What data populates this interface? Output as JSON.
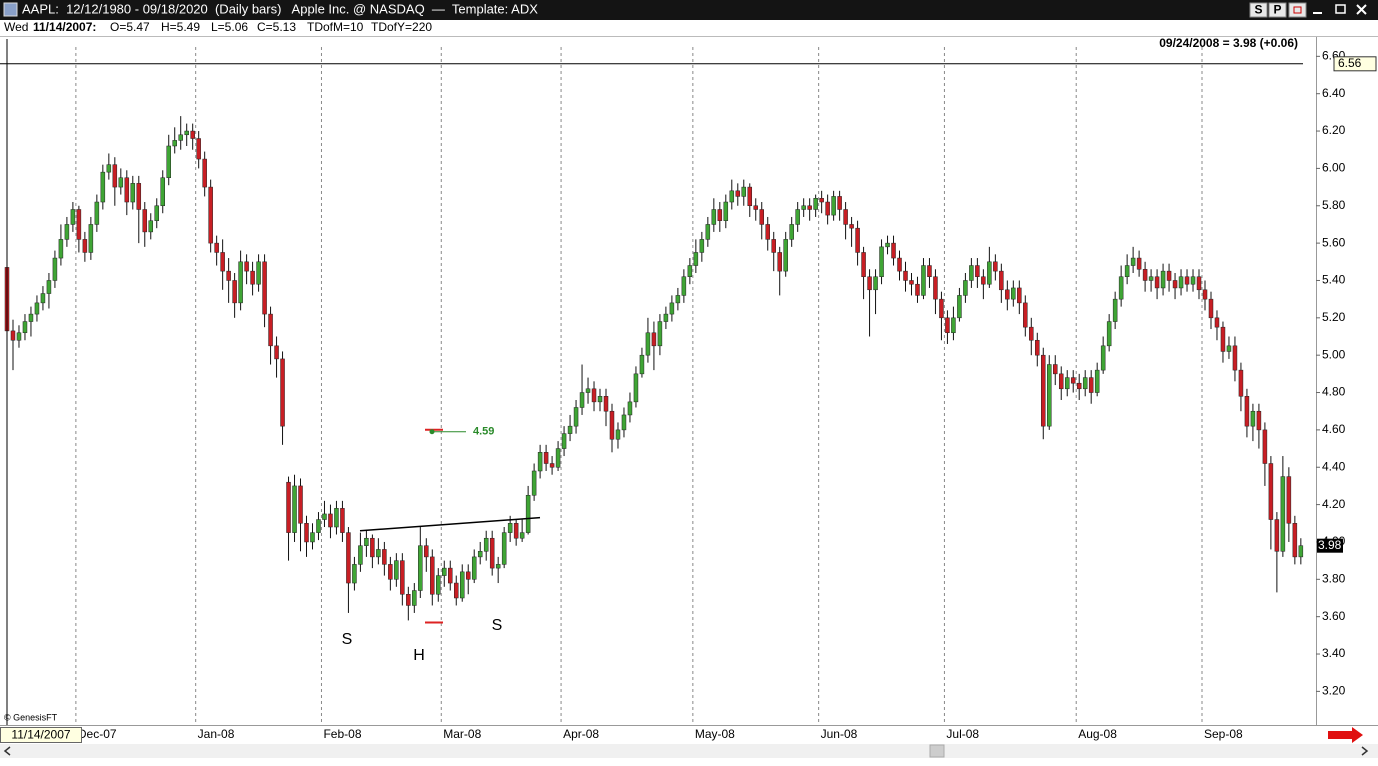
{
  "window": {
    "title": "AAPL:  12/12/1980 - 09/18/2020  (Daily bars)   Apple Inc. @ NASDAQ  —  Template: ADX",
    "buttons": [
      "S",
      "P"
    ]
  },
  "info_bar": {
    "day": "Wed",
    "date": "11/14/2007:",
    "items": [
      "O=5.47",
      "H=5.49",
      "L=5.06",
      "C=5.13",
      "TDofM=10",
      "TDofY=220"
    ]
  },
  "footer": {
    "credit": "© GenesisFT",
    "cursor_date": "11/14/2007"
  },
  "chart_data": {
    "type": "candlestick",
    "status_text": "09/24/2008 = 3.98 (+0.06)",
    "up_color": "#3fa535",
    "down_color": "#c81e24",
    "grid": true,
    "ylim": [
      3.02,
      6.65
    ],
    "yticks": [
      {
        "value": 3.2,
        "label": "3.20"
      },
      {
        "value": 3.4,
        "label": "3.40"
      },
      {
        "value": 3.6,
        "label": "3.60"
      },
      {
        "value": 3.8,
        "label": "3.80"
      },
      {
        "value": 4,
        "label": "4.00"
      },
      {
        "value": 4.2,
        "label": "4.20"
      },
      {
        "value": 4.4,
        "label": "4.40"
      },
      {
        "value": 4.6,
        "label": "4.60"
      },
      {
        "value": 4.8,
        "label": "4.80"
      },
      {
        "value": 5,
        "label": "5.00"
      },
      {
        "value": 5.2,
        "label": "5.20"
      },
      {
        "value": 5.4,
        "label": "5.40"
      },
      {
        "value": 5.6,
        "label": "5.60"
      },
      {
        "value": 5.8,
        "label": "5.80"
      },
      {
        "value": 6,
        "label": "6.00"
      },
      {
        "value": 6.2,
        "label": "6.20"
      },
      {
        "value": 6.4,
        "label": "6.40"
      },
      {
        "value": 6.6,
        "label": "6.60"
      }
    ],
    "crosshair": 6.56,
    "last_price": 3.98,
    "target": 4.59,
    "neckline": [
      4.06,
      4.13
    ],
    "pattern_labels": [
      "S",
      "H",
      "S"
    ],
    "categories": [
      null,
      null,
      null,
      null,
      null,
      null,
      null,
      null,
      null,
      null,
      null,
      null,
      "Dec-07",
      null,
      null,
      null,
      null,
      null,
      null,
      null,
      null,
      null,
      null,
      null,
      null,
      null,
      null,
      null,
      null,
      null,
      null,
      null,
      "Jan-08",
      null,
      null,
      null,
      null,
      null,
      null,
      null,
      null,
      null,
      null,
      null,
      null,
      null,
      null,
      null,
      null,
      null,
      null,
      null,
      null,
      "Feb-08",
      null,
      null,
      null,
      null,
      null,
      null,
      null,
      null,
      null,
      null,
      null,
      null,
      null,
      null,
      null,
      null,
      null,
      null,
      null,
      "Mar-08",
      null,
      null,
      null,
      null,
      null,
      null,
      null,
      null,
      null,
      null,
      null,
      null,
      null,
      null,
      null,
      null,
      null,
      null,
      null,
      "Apr-08",
      null,
      null,
      null,
      null,
      null,
      null,
      null,
      null,
      null,
      null,
      null,
      null,
      null,
      null,
      null,
      null,
      null,
      null,
      null,
      null,
      null,
      "May-08",
      null,
      null,
      null,
      null,
      null,
      null,
      null,
      null,
      null,
      null,
      null,
      null,
      null,
      null,
      null,
      null,
      null,
      null,
      null,
      null,
      "Jun-08",
      null,
      null,
      null,
      null,
      null,
      null,
      null,
      null,
      null,
      null,
      null,
      null,
      null,
      null,
      null,
      null,
      null,
      null,
      null,
      null,
      "Jul-08",
      null,
      null,
      null,
      null,
      null,
      null,
      null,
      null,
      null,
      null,
      null,
      null,
      null,
      null,
      null,
      null,
      null,
      null,
      null,
      null,
      null,
      "Aug-08",
      null,
      null,
      null,
      null,
      null,
      null,
      null,
      null,
      null,
      null,
      null,
      null,
      null,
      null,
      null,
      null,
      null,
      null,
      null,
      null,
      "Sep-08",
      null,
      null,
      null,
      null,
      null,
      null,
      null,
      null,
      null,
      null,
      null,
      null,
      null,
      null,
      null,
      null
    ],
    "open": [
      5.47,
      5.13,
      5.08,
      5.12,
      5.18,
      5.22,
      5.28,
      5.33,
      5.4,
      5.52,
      5.62,
      5.7,
      5.78,
      5.62,
      5.55,
      5.7,
      5.82,
      5.98,
      6.02,
      5.9,
      5.95,
      5.82,
      5.92,
      5.78,
      5.66,
      5.72,
      5.8,
      5.95,
      6.12,
      6.15,
      6.18,
      6.2,
      6.16,
      6.05,
      5.9,
      5.6,
      5.55,
      5.45,
      5.4,
      5.28,
      5.5,
      5.45,
      5.38,
      5.5,
      5.22,
      5.05,
      4.98,
      4.32,
      4.05,
      4.3,
      4.1,
      4.0,
      4.05,
      4.12,
      4.15,
      4.08,
      4.18,
      4.05,
      3.78,
      3.88,
      3.98,
      4.02,
      3.92,
      3.96,
      3.88,
      3.8,
      3.9,
      3.72,
      3.66,
      3.74,
      3.98,
      3.92,
      3.72,
      3.82,
      3.86,
      3.78,
      3.7,
      3.84,
      3.8,
      3.92,
      3.95,
      4.02,
      3.86,
      3.88,
      4.05,
      4.1,
      4.02,
      4.05,
      4.25,
      4.38,
      4.48,
      4.42,
      4.4,
      4.5,
      4.58,
      4.62,
      4.72,
      4.8,
      4.82,
      4.75,
      4.78,
      4.7,
      4.55,
      4.6,
      4.68,
      4.75,
      4.9,
      5.0,
      5.12,
      5.05,
      5.18,
      5.22,
      5.28,
      5.32,
      5.42,
      5.48,
      5.55,
      5.62,
      5.7,
      5.78,
      5.72,
      5.82,
      5.88,
      5.85,
      5.9,
      5.8,
      5.78,
      5.7,
      5.62,
      5.55,
      5.45,
      5.62,
      5.7,
      5.78,
      5.8,
      5.78,
      5.84,
      5.82,
      5.75,
      5.85,
      5.78,
      5.7,
      5.68,
      5.55,
      5.42,
      5.35,
      5.42,
      5.58,
      5.6,
      5.52,
      5.45,
      5.4,
      5.38,
      5.32,
      5.48,
      5.42,
      5.3,
      5.2,
      5.12,
      5.2,
      5.32,
      5.4,
      5.48,
      5.42,
      5.38,
      5.5,
      5.45,
      5.35,
      5.3,
      5.36,
      5.28,
      5.15,
      5.08,
      5.0,
      4.62,
      4.95,
      4.9,
      4.82,
      4.88,
      4.85,
      4.82,
      4.88,
      4.8,
      4.92,
      5.05,
      5.18,
      5.3,
      5.42,
      5.48,
      5.52,
      5.46,
      5.4,
      5.42,
      5.36,
      5.45,
      5.4,
      5.36,
      5.42,
      5.38,
      5.42,
      5.35,
      5.3,
      5.2,
      5.15,
      5.02,
      5.05,
      4.92,
      4.78,
      4.62,
      4.7,
      4.6,
      4.42,
      4.12,
      3.95,
      4.35,
      4.1,
      3.92
    ],
    "high": [
      5.49,
      5.19,
      5.16,
      5.22,
      5.26,
      5.32,
      5.37,
      5.44,
      5.56,
      5.7,
      5.74,
      5.82,
      5.8,
      5.66,
      5.74,
      5.86,
      6.02,
      6.08,
      6.06,
      6.0,
      5.99,
      5.96,
      5.96,
      5.82,
      5.76,
      5.84,
      5.99,
      6.18,
      6.22,
      6.28,
      6.24,
      6.24,
      6.2,
      6.09,
      5.94,
      5.64,
      5.62,
      5.52,
      5.44,
      5.56,
      5.54,
      5.5,
      5.54,
      5.54,
      5.26,
      5.1,
      5.02,
      4.35,
      4.36,
      4.34,
      4.14,
      4.1,
      4.16,
      4.22,
      4.2,
      4.22,
      4.22,
      4.08,
      3.92,
      4.05,
      4.06,
      4.04,
      4.02,
      4.0,
      3.92,
      3.94,
      3.94,
      3.76,
      3.78,
      4.08,
      4.02,
      3.96,
      3.86,
      3.9,
      3.9,
      3.82,
      3.88,
      3.88,
      3.96,
      4.0,
      4.06,
      4.06,
      3.92,
      4.08,
      4.14,
      4.12,
      4.12,
      4.3,
      4.42,
      4.52,
      4.52,
      4.46,
      4.54,
      4.62,
      4.68,
      4.76,
      4.95,
      4.88,
      4.86,
      4.82,
      4.82,
      4.74,
      4.64,
      4.72,
      4.8,
      4.94,
      5.04,
      5.2,
      5.18,
      5.22,
      5.26,
      5.32,
      5.36,
      5.46,
      5.52,
      5.62,
      5.66,
      5.74,
      5.84,
      5.82,
      5.86,
      5.94,
      5.92,
      5.94,
      5.92,
      5.84,
      5.82,
      5.74,
      5.66,
      5.58,
      5.66,
      5.74,
      5.82,
      5.84,
      5.84,
      5.86,
      5.88,
      5.86,
      5.88,
      5.88,
      5.82,
      5.74,
      5.72,
      5.58,
      5.46,
      5.46,
      5.62,
      5.64,
      5.64,
      5.56,
      5.5,
      5.44,
      5.42,
      5.52,
      5.52,
      5.46,
      5.34,
      5.24,
      5.26,
      5.36,
      5.44,
      5.52,
      5.52,
      5.46,
      5.58,
      5.54,
      5.49,
      5.4,
      5.4,
      5.4,
      5.32,
      5.2,
      5.12,
      5.04,
      5.0,
      5.0,
      4.94,
      4.92,
      4.92,
      4.9,
      4.92,
      4.92,
      4.96,
      5.1,
      5.22,
      5.34,
      5.48,
      5.54,
      5.58,
      5.56,
      5.5,
      5.46,
      5.46,
      5.49,
      5.49,
      5.44,
      5.46,
      5.46,
      5.46,
      5.46,
      5.4,
      5.34,
      5.24,
      5.18,
      5.1,
      5.1,
      4.96,
      4.82,
      4.74,
      4.74,
      4.64,
      4.46,
      4.16,
      4.46,
      4.4,
      4.14,
      4.02
    ],
    "low": [
      5.06,
      4.92,
      5.04,
      5.08,
      5.1,
      5.18,
      5.24,
      5.25,
      5.36,
      5.48,
      5.58,
      5.66,
      5.55,
      5.5,
      5.51,
      5.66,
      5.78,
      5.94,
      5.8,
      5.86,
      5.75,
      5.78,
      5.6,
      5.58,
      5.62,
      5.68,
      5.76,
      5.91,
      6.08,
      6.1,
      6.12,
      6.1,
      6.0,
      5.85,
      5.55,
      5.48,
      5.35,
      5.28,
      5.2,
      5.24,
      5.38,
      5.32,
      5.34,
      5.15,
      4.95,
      4.88,
      4.52,
      3.9,
      4.0,
      3.95,
      3.92,
      3.96,
      4.01,
      4.08,
      4.02,
      4.04,
      4.0,
      3.62,
      3.74,
      3.84,
      3.92,
      3.86,
      3.88,
      3.82,
      3.74,
      3.76,
      3.66,
      3.58,
      3.62,
      3.7,
      3.84,
      3.66,
      3.68,
      3.76,
      3.74,
      3.66,
      3.68,
      3.72,
      3.78,
      3.88,
      3.9,
      3.82,
      3.78,
      3.86,
      4.0,
      3.98,
      4.0,
      4.04,
      4.22,
      4.34,
      4.38,
      4.36,
      4.38,
      4.46,
      4.54,
      4.58,
      4.68,
      4.74,
      4.7,
      4.7,
      4.62,
      4.48,
      4.5,
      4.56,
      4.64,
      4.72,
      4.88,
      4.96,
      4.92,
      5.0,
      5.14,
      5.18,
      5.24,
      5.28,
      5.38,
      5.44,
      5.5,
      5.58,
      5.66,
      5.66,
      5.68,
      5.78,
      5.8,
      5.8,
      5.74,
      5.72,
      5.62,
      5.56,
      5.45,
      5.32,
      5.42,
      5.58,
      5.66,
      5.74,
      5.72,
      5.74,
      5.76,
      5.7,
      5.72,
      5.72,
      5.62,
      5.58,
      5.48,
      5.3,
      5.1,
      5.22,
      5.38,
      5.54,
      5.48,
      5.4,
      5.34,
      5.32,
      5.28,
      5.3,
      5.36,
      5.22,
      5.08,
      5.06,
      5.08,
      5.18,
      5.28,
      5.36,
      5.36,
      5.3,
      5.36,
      5.4,
      5.28,
      5.24,
      5.26,
      5.22,
      5.1,
      5.0,
      4.94,
      4.55,
      4.6,
      4.84,
      4.76,
      4.78,
      4.8,
      4.76,
      4.78,
      4.74,
      4.78,
      4.9,
      5.02,
      5.14,
      5.26,
      5.38,
      5.44,
      5.42,
      5.34,
      5.34,
      5.3,
      5.32,
      5.34,
      5.3,
      5.32,
      5.34,
      5.34,
      5.3,
      5.24,
      5.14,
      5.08,
      4.96,
      4.98,
      4.86,
      4.7,
      4.56,
      4.54,
      4.5,
      4.3,
      3.96,
      3.73,
      3.92,
      4.0,
      3.88,
      3.88
    ],
    "close": [
      5.13,
      5.08,
      5.12,
      5.18,
      5.22,
      5.28,
      5.33,
      5.4,
      5.52,
      5.62,
      5.7,
      5.78,
      5.62,
      5.55,
      5.7,
      5.82,
      5.98,
      6.02,
      5.9,
      5.95,
      5.82,
      5.92,
      5.78,
      5.66,
      5.72,
      5.8,
      5.95,
      6.12,
      6.15,
      6.18,
      6.2,
      6.16,
      6.05,
      5.9,
      5.6,
      5.55,
      5.45,
      5.4,
      5.28,
      5.5,
      5.45,
      5.38,
      5.5,
      5.22,
      5.05,
      4.98,
      4.62,
      4.05,
      4.3,
      4.1,
      4.0,
      4.05,
      4.12,
      4.15,
      4.08,
      4.18,
      4.05,
      3.78,
      3.88,
      3.98,
      4.02,
      3.92,
      3.96,
      3.88,
      3.8,
      3.9,
      3.72,
      3.66,
      3.74,
      3.98,
      3.92,
      3.72,
      3.82,
      3.86,
      3.78,
      3.7,
      3.84,
      3.8,
      3.92,
      3.95,
      4.02,
      3.86,
      3.88,
      4.05,
      4.1,
      4.02,
      4.05,
      4.25,
      4.38,
      4.48,
      4.42,
      4.4,
      4.5,
      4.58,
      4.62,
      4.72,
      4.8,
      4.82,
      4.75,
      4.78,
      4.7,
      4.55,
      4.6,
      4.68,
      4.75,
      4.9,
      5.0,
      5.12,
      5.05,
      5.18,
      5.22,
      5.28,
      5.32,
      5.42,
      5.48,
      5.55,
      5.62,
      5.7,
      5.78,
      5.72,
      5.82,
      5.88,
      5.85,
      5.9,
      5.8,
      5.78,
      5.7,
      5.62,
      5.55,
      5.45,
      5.62,
      5.7,
      5.78,
      5.8,
      5.78,
      5.84,
      5.82,
      5.75,
      5.85,
      5.78,
      5.7,
      5.68,
      5.55,
      5.42,
      5.35,
      5.42,
      5.58,
      5.6,
      5.52,
      5.45,
      5.4,
      5.38,
      5.32,
      5.48,
      5.42,
      5.3,
      5.2,
      5.12,
      5.2,
      5.32,
      5.4,
      5.48,
      5.42,
      5.38,
      5.5,
      5.45,
      5.35,
      5.3,
      5.36,
      5.28,
      5.15,
      5.08,
      5.0,
      4.62,
      4.95,
      4.9,
      4.82,
      4.88,
      4.85,
      4.82,
      4.88,
      4.8,
      4.92,
      5.05,
      5.18,
      5.3,
      5.42,
      5.48,
      5.52,
      5.46,
      5.4,
      5.42,
      5.36,
      5.45,
      5.4,
      5.36,
      5.42,
      5.38,
      5.42,
      5.35,
      5.3,
      5.2,
      5.15,
      5.02,
      5.05,
      4.92,
      4.78,
      4.62,
      4.7,
      4.6,
      4.42,
      4.12,
      3.95,
      4.35,
      4.1,
      3.92,
      3.98
    ]
  }
}
